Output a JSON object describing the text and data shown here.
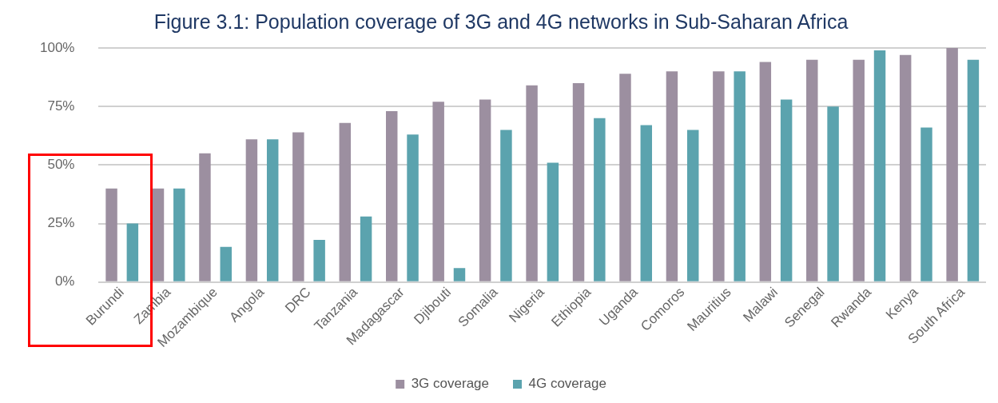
{
  "chart_data": {
    "type": "bar",
    "title": "Figure 3.1: Population coverage of 3G and 4G networks in Sub-Saharan Africa",
    "categories": [
      "Burundi",
      "Zambia",
      "Mozambique",
      "Angola",
      "DRC",
      "Tanzania",
      "Madagascar",
      "Djibouti",
      "Somalia",
      "Nigeria",
      "Ethiopia",
      "Uganda",
      "Comoros",
      "Mauritius",
      "Malawi",
      "Senegal",
      "Rwanda",
      "Kenya",
      "South Africa"
    ],
    "series": [
      {
        "name": "3G coverage",
        "color": "#9c8fa0",
        "values": [
          40,
          40,
          55,
          61,
          64,
          68,
          73,
          77,
          78,
          84,
          85,
          89,
          90,
          90,
          94,
          95,
          95,
          97,
          100
        ]
      },
      {
        "name": "4G coverage",
        "color": "#5ba3ae",
        "values": [
          25,
          40,
          15,
          61,
          18,
          28,
          63,
          6,
          65,
          51,
          70,
          67,
          65,
          90,
          78,
          75,
          99,
          66,
          95
        ]
      }
    ],
    "ylim": [
      0,
      100
    ],
    "yticks": [
      {
        "value": 0,
        "label": "0%"
      },
      {
        "value": 25,
        "label": "25%"
      },
      {
        "value": 50,
        "label": "50%"
      },
      {
        "value": 75,
        "label": "75%"
      },
      {
        "value": 100,
        "label": "100%"
      }
    ],
    "grid": "y",
    "legend": "bottom"
  }
}
